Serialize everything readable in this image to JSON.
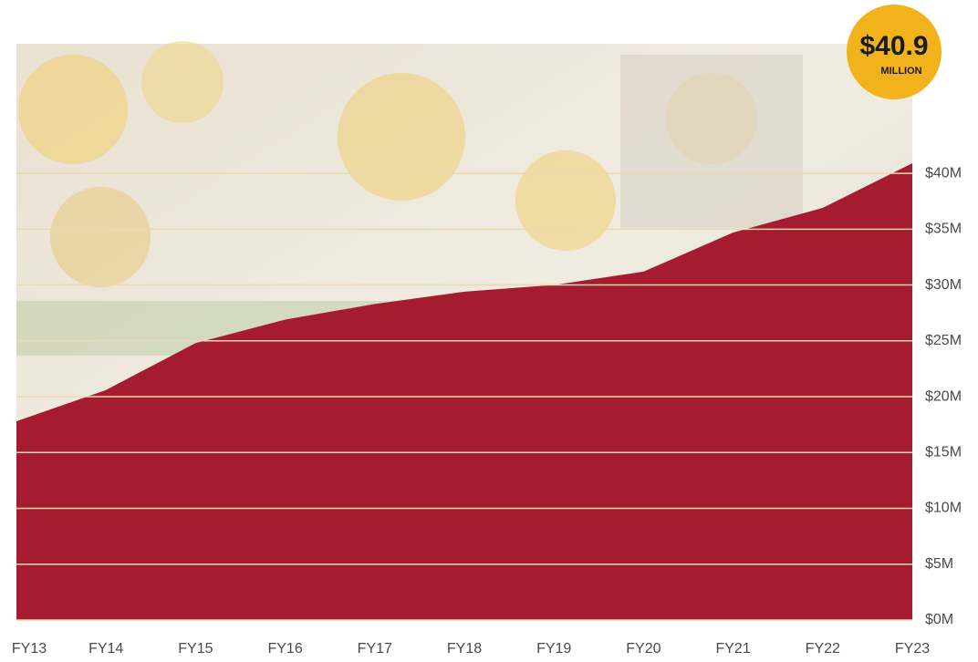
{
  "chart_data": {
    "type": "area",
    "categories": [
      "FY13",
      "FY14",
      "FY15",
      "FY16",
      "FY17",
      "FY18",
      "FY19",
      "FY20",
      "FY21",
      "FY22",
      "FY23"
    ],
    "values": [
      17.8,
      20.6,
      24.8,
      26.9,
      28.3,
      29.4,
      30.0,
      31.2,
      34.7,
      36.9,
      40.9
    ],
    "color": "#a51c30",
    "ylim": [
      0,
      51.6
    ],
    "yticks": [
      {
        "value": 0,
        "label": "$0M"
      },
      {
        "value": 5,
        "label": "$5M"
      },
      {
        "value": 10,
        "label": "$10M"
      },
      {
        "value": 15,
        "label": "$15M"
      },
      {
        "value": 20,
        "label": "$20M"
      },
      {
        "value": 25,
        "label": "$25M"
      },
      {
        "value": 30,
        "label": "$30M"
      },
      {
        "value": 35,
        "label": "$35M"
      },
      {
        "value": 40,
        "label": "$40M"
      }
    ],
    "grid": true,
    "grid_color": "#ead9ae",
    "annotation": {
      "text": "$40.9",
      "subtext": "MILLION",
      "color": "#f2b21c"
    }
  }
}
